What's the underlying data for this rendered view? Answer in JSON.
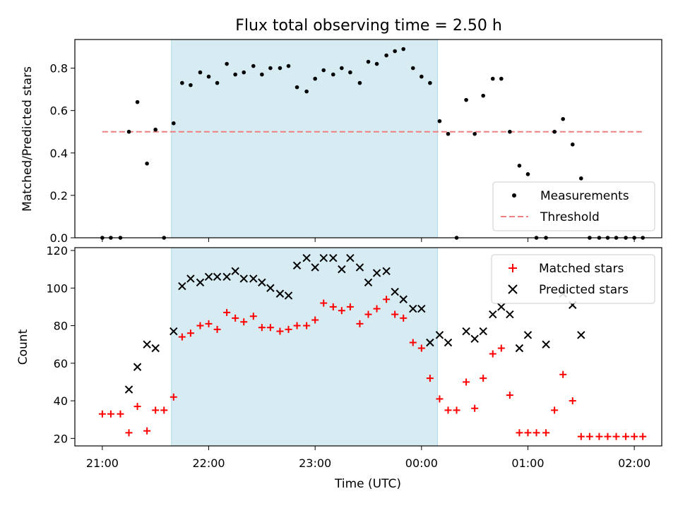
{
  "colors": {
    "highlight": "#add8e6",
    "measurement": "#000000",
    "threshold": "#f08080",
    "matched": "#ff0000",
    "predicted": "#000000"
  },
  "chart_data": [
    {
      "type": "scatter",
      "title": "Flux total observing time = 2.50 h",
      "xlabel": "",
      "ylabel": "Matched/Predicted stars",
      "xlim": [
        -0.258,
        5.258
      ],
      "ylim": [
        0,
        0.935
      ],
      "yticks": [
        0,
        0.2,
        0.4,
        0.6,
        0.8
      ],
      "ytick_labels": [
        "0.0",
        "0.2",
        "0.4",
        "0.6",
        "0.8"
      ],
      "highlight_span": {
        "start": 0.65,
        "end": 3.15
      },
      "legend": {
        "position": "lower-right",
        "entries": [
          "Measurements",
          "Threshold"
        ]
      },
      "series": [
        {
          "name": "Measurements",
          "x": [
            0.0,
            0.08,
            0.17,
            0.25,
            0.33,
            0.42,
            0.5,
            0.58,
            0.67,
            0.75,
            0.83,
            0.92,
            1.0,
            1.08,
            1.17,
            1.25,
            1.33,
            1.42,
            1.5,
            1.58,
            1.67,
            1.75,
            1.83,
            1.92,
            2.0,
            2.08,
            2.17,
            2.25,
            2.33,
            2.42,
            2.5,
            2.58,
            2.67,
            2.75,
            2.83,
            2.92,
            3.0,
            3.08,
            3.17,
            3.25,
            3.33,
            3.42,
            3.5,
            3.58,
            3.67,
            3.75,
            3.83,
            3.92,
            4.0,
            4.08,
            4.17,
            4.25,
            4.33,
            4.42,
            4.5,
            4.58,
            4.67,
            4.75,
            4.83,
            4.92,
            5.0,
            5.08
          ],
          "y": [
            0.0,
            0.0,
            0.0,
            0.5,
            0.64,
            0.35,
            0.51,
            0.0,
            0.54,
            0.73,
            0.72,
            0.78,
            0.76,
            0.73,
            0.82,
            0.77,
            0.78,
            0.81,
            0.77,
            0.8,
            0.8,
            0.81,
            0.71,
            0.69,
            0.75,
            0.79,
            0.77,
            0.8,
            0.78,
            0.73,
            0.83,
            0.82,
            0.86,
            0.88,
            0.89,
            0.8,
            0.76,
            0.73,
            0.55,
            0.49,
            0.0,
            0.65,
            0.49,
            0.67,
            0.75,
            0.75,
            0.5,
            0.34,
            0.3,
            0.0,
            0.0,
            0.5,
            0.56,
            0.44,
            0.28,
            0.0,
            0.0,
            0.0,
            0.0,
            0.0,
            0.0,
            0.0
          ]
        },
        {
          "name": "Threshold",
          "x": [
            0.0,
            5.08
          ],
          "y": [
            0.5,
            0.5
          ]
        }
      ]
    },
    {
      "type": "scatter",
      "title": "",
      "xlabel": "Time (UTC)",
      "ylabel": "Count",
      "xlim": [
        -0.258,
        5.258
      ],
      "ylim": [
        16.0,
        121.5
      ],
      "yticks": [
        20,
        40,
        60,
        80,
        100,
        120
      ],
      "ytick_labels": [
        "20",
        "40",
        "60",
        "80",
        "100",
        "120"
      ],
      "xticks": [
        0,
        1,
        2,
        3,
        4,
        5
      ],
      "xtick_labels": [
        "21:00",
        "22:00",
        "23:00",
        "00:00",
        "01:00",
        "02:00"
      ],
      "highlight_span": {
        "start": 0.65,
        "end": 3.15
      },
      "legend": {
        "position": "top-right",
        "entries": [
          "Matched stars",
          "Predicted stars"
        ]
      },
      "series": [
        {
          "name": "Matched stars",
          "x": [
            0.0,
            0.08,
            0.17,
            0.25,
            0.33,
            0.42,
            0.5,
            0.58,
            0.67,
            0.75,
            0.83,
            0.92,
            1.0,
            1.08,
            1.17,
            1.25,
            1.33,
            1.42,
            1.5,
            1.58,
            1.67,
            1.75,
            1.83,
            1.92,
            2.0,
            2.08,
            2.17,
            2.25,
            2.33,
            2.42,
            2.5,
            2.58,
            2.67,
            2.75,
            2.83,
            2.92,
            3.0,
            3.08,
            3.17,
            3.25,
            3.33,
            3.42,
            3.5,
            3.58,
            3.67,
            3.75,
            3.83,
            3.92,
            4.0,
            4.08,
            4.17,
            4.25,
            4.33,
            4.42,
            4.5,
            4.58,
            4.67,
            4.75,
            4.83,
            4.92,
            5.0,
            5.08
          ],
          "y": [
            33,
            33,
            33,
            23,
            37,
            24,
            35,
            35,
            42,
            74,
            76,
            80,
            81,
            78,
            87,
            84,
            82,
            85,
            79,
            79,
            77,
            78,
            80,
            80,
            83,
            92,
            90,
            88,
            90,
            81,
            86,
            89,
            94,
            86,
            84,
            71,
            68,
            52,
            41,
            35,
            35,
            50,
            36,
            52,
            65,
            68,
            43,
            23,
            23,
            23,
            23,
            35,
            54,
            40,
            21,
            21,
            21,
            21,
            21,
            21,
            21,
            21
          ]
        },
        {
          "name": "Predicted stars",
          "x": [
            0.25,
            0.33,
            0.42,
            0.5,
            0.67,
            0.75,
            0.83,
            0.92,
            1.0,
            1.08,
            1.17,
            1.25,
            1.33,
            1.42,
            1.5,
            1.58,
            1.67,
            1.75,
            1.83,
            1.92,
            2.0,
            2.08,
            2.17,
            2.25,
            2.33,
            2.42,
            2.5,
            2.58,
            2.67,
            2.75,
            2.83,
            2.92,
            3.0,
            3.08,
            3.17,
            3.25,
            3.42,
            3.5,
            3.58,
            3.67,
            3.75,
            3.83,
            3.92,
            4.0,
            4.17,
            4.33,
            4.42,
            4.5
          ],
          "y": [
            46,
            58,
            70,
            68,
            77,
            101,
            105,
            103,
            106,
            106,
            106,
            109,
            105,
            105,
            103,
            100,
            97,
            96,
            112,
            116,
            111,
            116,
            116,
            110,
            116,
            111,
            103,
            108,
            109,
            98,
            94,
            89,
            89,
            71,
            75,
            71,
            77,
            73,
            77,
            86,
            90,
            86,
            68,
            75,
            70,
            97,
            91,
            75
          ]
        }
      ]
    }
  ]
}
